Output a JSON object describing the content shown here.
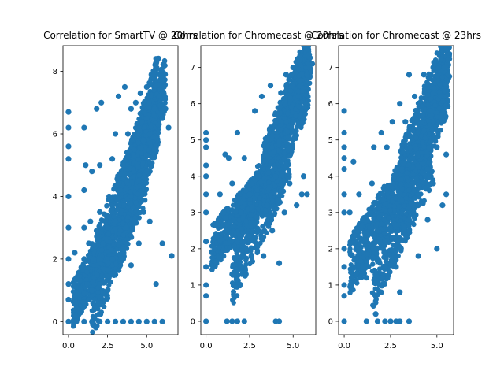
{
  "figure": {
    "background": "#ffffff",
    "marker_color": "#1f77b4"
  },
  "chart_data": [
    {
      "type": "scatter",
      "title": "Correlation for SmartTV @ 20hrs",
      "xlabel": "",
      "ylabel": "",
      "xlim": [
        -0.35,
        7.0
      ],
      "ylim": [
        -0.42,
        8.82
      ],
      "xticks": [
        0,
        2.5,
        5
      ],
      "xtick_labels": [
        "0.0",
        "2.5",
        "5.0"
      ],
      "yticks": [
        0,
        2,
        4,
        6,
        8
      ],
      "ytick_labels": [
        "0",
        "2",
        "4",
        "6",
        "8"
      ],
      "grid": false,
      "points": [
        [
          0.0,
          0.0
        ],
        [
          0.0,
          0.7
        ],
        [
          0.0,
          1.2
        ],
        [
          0.0,
          2.0
        ],
        [
          0.0,
          3.0
        ],
        [
          0.0,
          4.0
        ],
        [
          0.0,
          5.2
        ],
        [
          0.0,
          5.6
        ],
        [
          0.0,
          6.2
        ],
        [
          0.0,
          6.7
        ],
        [
          0.3,
          0.0
        ],
        [
          0.5,
          0.0
        ],
        [
          1.0,
          0.0
        ],
        [
          1.5,
          0.0
        ],
        [
          2.0,
          0.0
        ],
        [
          2.5,
          0.0
        ],
        [
          3.0,
          0.0
        ],
        [
          3.5,
          0.0
        ],
        [
          4.0,
          0.0
        ],
        [
          4.5,
          0.0
        ],
        [
          5.0,
          0.0
        ],
        [
          5.5,
          0.0
        ],
        [
          6.0,
          0.0
        ],
        [
          0.4,
          0.8
        ],
        [
          0.4,
          2.2
        ],
        [
          0.5,
          1.4
        ],
        [
          0.8,
          1.0
        ],
        [
          1.0,
          0.9
        ],
        [
          1.0,
          2.0
        ],
        [
          1.0,
          3.0
        ],
        [
          1.0,
          4.2
        ],
        [
          1.0,
          6.2
        ],
        [
          1.1,
          5.0
        ],
        [
          1.2,
          1.2
        ],
        [
          1.3,
          2.5
        ],
        [
          1.4,
          3.2
        ],
        [
          1.5,
          1.0
        ],
        [
          1.5,
          4.8
        ],
        [
          1.6,
          2.0
        ],
        [
          1.8,
          6.8
        ],
        [
          1.8,
          1.5
        ],
        [
          2.0,
          1.2
        ],
        [
          2.0,
          3.5
        ],
        [
          2.0,
          5.0
        ],
        [
          2.1,
          7.0
        ],
        [
          2.2,
          2.5
        ],
        [
          2.5,
          1.0
        ],
        [
          2.5,
          3.0
        ],
        [
          2.6,
          4.0
        ],
        [
          2.8,
          2.0
        ],
        [
          2.8,
          5.2
        ],
        [
          3.0,
          1.5
        ],
        [
          3.0,
          3.2
        ],
        [
          3.0,
          6.0
        ],
        [
          3.2,
          2.5
        ],
        [
          3.2,
          7.2
        ],
        [
          3.3,
          4.2
        ],
        [
          3.5,
          2.0
        ],
        [
          3.5,
          5.0
        ],
        [
          3.6,
          7.5
        ],
        [
          3.7,
          3.0
        ],
        [
          3.8,
          6.0
        ],
        [
          4.0,
          1.8
        ],
        [
          4.0,
          4.0
        ],
        [
          4.0,
          6.8
        ],
        [
          4.2,
          3.2
        ],
        [
          4.2,
          5.5
        ],
        [
          4.3,
          7.0
        ],
        [
          4.5,
          2.5
        ],
        [
          4.5,
          4.5
        ],
        [
          4.5,
          6.2
        ],
        [
          4.6,
          7.3
        ],
        [
          4.8,
          3.5
        ],
        [
          4.8,
          5.8
        ],
        [
          5.0,
          4.8
        ],
        [
          5.0,
          6.5
        ],
        [
          5.0,
          7.5
        ],
        [
          5.2,
          3.2
        ],
        [
          5.2,
          6.0
        ],
        [
          5.3,
          7.9
        ],
        [
          5.5,
          5.5
        ],
        [
          5.5,
          6.8
        ],
        [
          5.6,
          8.4
        ],
        [
          5.6,
          1.2
        ],
        [
          5.8,
          7.2
        ],
        [
          6.0,
          6.5
        ],
        [
          6.0,
          2.5
        ],
        [
          6.2,
          6.8
        ],
        [
          6.4,
          6.2
        ],
        [
          6.6,
          2.1
        ]
      ],
      "clusters": [
        {
          "x": [
            0.3,
            3.0
          ],
          "y": [
            0.6,
            2.8
          ],
          "n": 550
        },
        {
          "x": [
            1.5,
            5.0
          ],
          "y": [
            1.0,
            5.5
          ],
          "n": 700
        },
        {
          "x": [
            3.2,
            5.8
          ],
          "y": [
            3.0,
            7.2
          ],
          "n": 700
        },
        {
          "x": [
            4.4,
            6.2
          ],
          "y": [
            5.2,
            7.6
          ],
          "n": 350
        }
      ]
    },
    {
      "type": "scatter",
      "title": "Correlation for Chromecast @ 20hrs",
      "xlabel": "",
      "ylabel": "",
      "xlim": [
        -0.3,
        6.3
      ],
      "ylim": [
        -0.37,
        7.6
      ],
      "xticks": [
        0,
        2.5,
        5
      ],
      "xtick_labels": [
        "0.0",
        "2.5",
        "5.0"
      ],
      "yticks": [
        0,
        1,
        2,
        3,
        4,
        5,
        6,
        7
      ],
      "ytick_labels": [
        "0",
        "1",
        "2",
        "3",
        "4",
        "5",
        "6",
        "7"
      ],
      "grid": false,
      "points": [
        [
          0.0,
          0.0
        ],
        [
          0.0,
          0.7
        ],
        [
          0.0,
          1.0
        ],
        [
          0.0,
          1.5
        ],
        [
          0.0,
          2.2
        ],
        [
          0.0,
          3.0
        ],
        [
          0.0,
          3.5
        ],
        [
          0.0,
          4.0
        ],
        [
          0.0,
          4.3
        ],
        [
          0.0,
          4.8
        ],
        [
          0.0,
          5.0
        ],
        [
          0.0,
          5.2
        ],
        [
          1.2,
          0.0
        ],
        [
          1.5,
          0.0
        ],
        [
          1.8,
          0.0
        ],
        [
          2.2,
          0.0
        ],
        [
          4.0,
          0.0
        ],
        [
          4.2,
          0.0
        ],
        [
          0.5,
          2.0
        ],
        [
          0.8,
          3.5
        ],
        [
          1.0,
          1.8
        ],
        [
          1.0,
          3.0
        ],
        [
          1.1,
          4.6
        ],
        [
          1.2,
          2.5
        ],
        [
          1.3,
          4.5
        ],
        [
          1.5,
          1.3
        ],
        [
          1.5,
          3.8
        ],
        [
          1.6,
          0.7
        ],
        [
          1.8,
          2.2
        ],
        [
          1.8,
          5.2
        ],
        [
          2.0,
          1.5
        ],
        [
          2.0,
          3.0
        ],
        [
          2.2,
          4.5
        ],
        [
          2.3,
          2.0
        ],
        [
          2.5,
          3.5
        ],
        [
          2.6,
          1.8
        ],
        [
          2.8,
          5.8
        ],
        [
          3.0,
          2.5
        ],
        [
          3.0,
          4.0
        ],
        [
          3.2,
          6.2
        ],
        [
          3.3,
          1.8
        ],
        [
          3.5,
          3.2
        ],
        [
          3.5,
          5.0
        ],
        [
          3.7,
          6.5
        ],
        [
          3.8,
          2.5
        ],
        [
          4.0,
          4.0
        ],
        [
          4.0,
          5.5
        ],
        [
          4.2,
          1.6
        ],
        [
          4.3,
          6.3
        ],
        [
          4.5,
          3.0
        ],
        [
          4.5,
          4.5
        ],
        [
          4.6,
          6.8
        ],
        [
          4.8,
          3.8
        ],
        [
          5.0,
          5.5
        ],
        [
          5.0,
          7.0
        ],
        [
          5.2,
          3.2
        ],
        [
          5.3,
          6.2
        ],
        [
          5.4,
          7.2
        ],
        [
          5.5,
          3.5
        ],
        [
          5.6,
          4.0
        ],
        [
          5.8,
          6.8
        ],
        [
          5.8,
          3.5
        ],
        [
          6.1,
          7.1
        ],
        [
          5.9,
          7.0
        ]
      ],
      "clusters": [
        {
          "x": [
            0.3,
            3.5
          ],
          "y": [
            2.0,
            3.8
          ],
          "n": 500
        },
        {
          "x": [
            1.5,
            4.8
          ],
          "y": [
            1.6,
            5.0
          ],
          "n": 600
        },
        {
          "x": [
            3.3,
            5.9
          ],
          "y": [
            3.8,
            7.0
          ],
          "n": 650
        },
        {
          "x": [
            4.5,
            6.0
          ],
          "y": [
            5.5,
            7.2
          ],
          "n": 300
        }
      ]
    },
    {
      "type": "scatter",
      "title": "Correlation for Chromecast @ 23hrs",
      "xlabel": "",
      "ylabel": "",
      "xlim": [
        -0.3,
        5.9
      ],
      "ylim": [
        -0.37,
        7.6
      ],
      "xticks": [
        0,
        2.5,
        5
      ],
      "xtick_labels": [
        "0.0",
        "2.5",
        "5.0"
      ],
      "yticks": [
        0,
        1,
        2,
        3,
        4,
        5,
        6,
        7
      ],
      "ytick_labels": [
        "0",
        "1",
        "2",
        "3",
        "4",
        "5",
        "6",
        "7"
      ],
      "grid": false,
      "points": [
        [
          0.0,
          0.0
        ],
        [
          0.0,
          0.7
        ],
        [
          0.0,
          1.0
        ],
        [
          0.0,
          1.5
        ],
        [
          0.0,
          2.0
        ],
        [
          0.0,
          3.0
        ],
        [
          0.0,
          3.5
        ],
        [
          0.0,
          4.2
        ],
        [
          0.0,
          4.5
        ],
        [
          0.0,
          4.8
        ],
        [
          0.0,
          5.2
        ],
        [
          0.0,
          5.8
        ],
        [
          1.2,
          0.0
        ],
        [
          1.8,
          0.0
        ],
        [
          2.2,
          0.0
        ],
        [
          2.5,
          0.0
        ],
        [
          2.8,
          0.0
        ],
        [
          3.0,
          0.0
        ],
        [
          3.5,
          0.0
        ],
        [
          0.3,
          3.0
        ],
        [
          0.4,
          1.2
        ],
        [
          0.5,
          4.4
        ],
        [
          0.7,
          2.0
        ],
        [
          0.8,
          3.5
        ],
        [
          1.0,
          1.5
        ],
        [
          1.0,
          2.8
        ],
        [
          1.2,
          1.2
        ],
        [
          1.5,
          3.8
        ],
        [
          1.6,
          4.8
        ],
        [
          1.7,
          0.2
        ],
        [
          1.8,
          2.5
        ],
        [
          2.0,
          0.8
        ],
        [
          2.0,
          5.2
        ],
        [
          2.2,
          1.5
        ],
        [
          2.3,
          4.8
        ],
        [
          2.5,
          2.5
        ],
        [
          2.6,
          5.5
        ],
        [
          2.8,
          1.5
        ],
        [
          3.0,
          3.5
        ],
        [
          3.0,
          6.0
        ],
        [
          3.0,
          0.8
        ],
        [
          3.2,
          2.5
        ],
        [
          3.3,
          5.5
        ],
        [
          3.5,
          6.8
        ],
        [
          3.5,
          2.8
        ],
        [
          3.7,
          4.5
        ],
        [
          3.8,
          6.2
        ],
        [
          4.0,
          1.8
        ],
        [
          4.0,
          3.5
        ],
        [
          4.2,
          5.5
        ],
        [
          4.3,
          6.8
        ],
        [
          4.5,
          2.8
        ],
        [
          4.5,
          4.2
        ],
        [
          4.6,
          5.8
        ],
        [
          4.8,
          3.8
        ],
        [
          4.8,
          7.0
        ],
        [
          5.0,
          2.0
        ],
        [
          5.0,
          4.8
        ],
        [
          5.2,
          6.2
        ],
        [
          5.3,
          3.2
        ],
        [
          5.4,
          7.0
        ],
        [
          5.5,
          4.6
        ],
        [
          5.5,
          3.5
        ],
        [
          5.6,
          6.8
        ],
        [
          5.6,
          7.2
        ]
      ],
      "clusters": [
        {
          "x": [
            0.3,
            3.3
          ],
          "y": [
            1.5,
            3.8
          ],
          "n": 500
        },
        {
          "x": [
            1.5,
            4.8
          ],
          "y": [
            1.5,
            5.0
          ],
          "n": 600
        },
        {
          "x": [
            3.0,
            5.6
          ],
          "y": [
            3.5,
            7.0
          ],
          "n": 650
        },
        {
          "x": [
            4.2,
            5.7
          ],
          "y": [
            5.3,
            7.2
          ],
          "n": 300
        }
      ]
    }
  ]
}
